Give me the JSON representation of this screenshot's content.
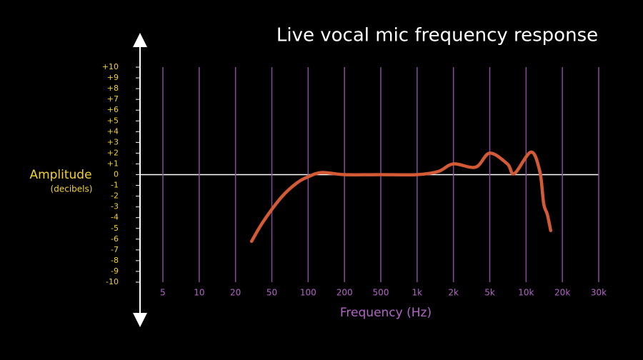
{
  "chart_data": {
    "type": "line",
    "title": "Live vocal mic frequency response",
    "y_label": "Amplitude",
    "y_sublabel": "(decibels)",
    "x_label": "Frequency (Hz)",
    "xscale": "log",
    "xlim": [
      5,
      30000
    ],
    "xticks": [
      5,
      10,
      20,
      50,
      100,
      200,
      500,
      {
        "value": 1000,
        "label": "1k"
      },
      {
        "value": 2000,
        "label": "2k"
      },
      {
        "value": 5000,
        "label": "5k"
      },
      {
        "value": 10000,
        "label": "10k"
      },
      {
        "value": 20000,
        "label": "20k"
      },
      {
        "value": 30000,
        "label": "30k"
      }
    ],
    "ylim": [
      -10,
      10
    ],
    "yticks": [
      {
        "value": 10,
        "label": "+10"
      },
      {
        "value": 9,
        "label": "+9"
      },
      {
        "value": 8,
        "label": "+8"
      },
      {
        "value": 7,
        "label": "+7"
      },
      {
        "value": 6,
        "label": "+6"
      },
      {
        "value": 5,
        "label": "+5"
      },
      {
        "value": 4,
        "label": "+4"
      },
      {
        "value": 3,
        "label": "+3"
      },
      {
        "value": 2,
        "label": "+2"
      },
      {
        "value": 1,
        "label": "+1"
      },
      0,
      -1,
      -2,
      -3,
      -4,
      -5,
      -6,
      -7,
      -8,
      -9,
      -10
    ],
    "grid": true,
    "grid_color": "#8a4a9e",
    "series": [
      {
        "color": "#d45a35",
        "x": [
          30,
          40,
          60,
          80,
          100,
          130,
          200,
          500,
          1000,
          1500,
          2000,
          3500,
          5000,
          7000,
          8000,
          11000,
          13000,
          14000,
          15000,
          16000
        ],
        "values": [
          -6.2,
          -4.4,
          -2.1,
          -0.8,
          -0.2,
          0.2,
          0,
          0,
          0,
          0.3,
          1,
          0.7,
          2,
          1,
          0.1,
          2.1,
          0.3,
          -2.7,
          -3.7,
          -5.2
        ]
      }
    ]
  }
}
